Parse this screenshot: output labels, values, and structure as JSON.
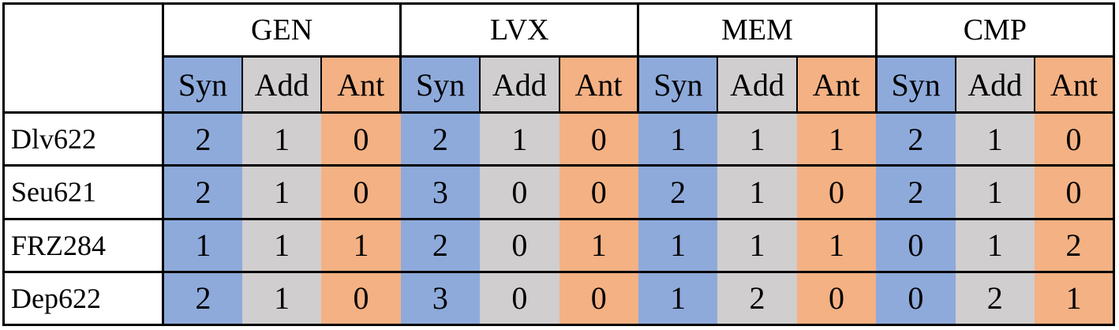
{
  "table": {
    "groups": [
      {
        "name": "GEN",
        "subheaders": [
          "Syn",
          "Add",
          "Ant"
        ]
      },
      {
        "name": "LVX",
        "subheaders": [
          "Syn",
          "Add",
          "Ant"
        ]
      },
      {
        "name": "MEM",
        "subheaders": [
          "Syn",
          "Add",
          "Ant"
        ]
      },
      {
        "name": "CMP",
        "subheaders": [
          "Syn",
          "Add",
          "Ant"
        ]
      }
    ],
    "rows": [
      {
        "label": "Dlv622",
        "values": [
          2,
          1,
          0,
          2,
          1,
          0,
          1,
          1,
          1,
          2,
          1,
          0
        ]
      },
      {
        "label": "Seu621",
        "values": [
          2,
          1,
          0,
          3,
          0,
          0,
          2,
          1,
          0,
          2,
          1,
          0
        ]
      },
      {
        "label": "FRZ284",
        "values": [
          1,
          1,
          1,
          2,
          0,
          1,
          1,
          1,
          1,
          0,
          1,
          2
        ]
      },
      {
        "label": "Dep622",
        "values": [
          2,
          1,
          0,
          3,
          0,
          0,
          1,
          2,
          0,
          0,
          2,
          1
        ]
      }
    ]
  }
}
